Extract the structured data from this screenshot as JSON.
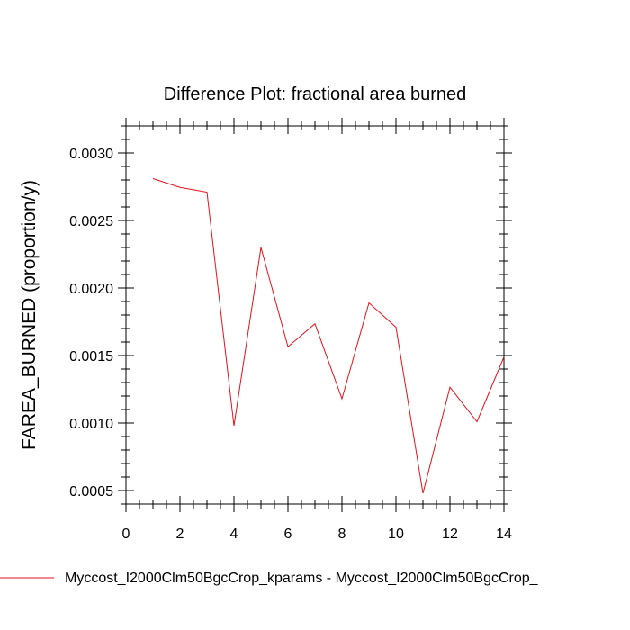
{
  "chart_data": {
    "type": "line",
    "title": "Difference Plot: fractional area burned",
    "xlabel": "",
    "ylabel": "FAREA_BURNED  (proportion/y)",
    "xlim": [
      0,
      14
    ],
    "ylim": [
      0.0004,
      0.0032
    ],
    "xticks": [
      0,
      2,
      4,
      6,
      8,
      10,
      12,
      14
    ],
    "xtick_labels": [
      "0",
      "2",
      "4",
      "6",
      "8",
      "10",
      "12",
      "14"
    ],
    "yticks": [
      0.0005,
      0.001,
      0.0015,
      0.002,
      0.0025,
      0.003
    ],
    "ytick_labels": [
      "0.0005",
      "0.0010",
      "0.0015",
      "0.0020",
      "0.0025",
      "0.0030"
    ],
    "x_minor_step": 0.5,
    "y_minor_step": 0.0001,
    "grid": false,
    "legend_position": "bottom",
    "series": [
      {
        "name": "Myccost_I2000Clm50BgcCrop_kparams - Myccost_I2000Clm50BgcCrop_",
        "color": "#e8101a",
        "x": [
          1,
          2,
          3,
          4,
          5,
          6,
          7,
          8,
          9,
          10,
          11,
          12,
          13,
          14
        ],
        "values": [
          0.00281,
          0.002745,
          0.00271,
          0.00098,
          0.0023,
          0.001565,
          0.001735,
          0.00118,
          0.00189,
          0.00171,
          0.00048,
          0.001265,
          0.00101,
          0.00149
        ]
      }
    ]
  }
}
